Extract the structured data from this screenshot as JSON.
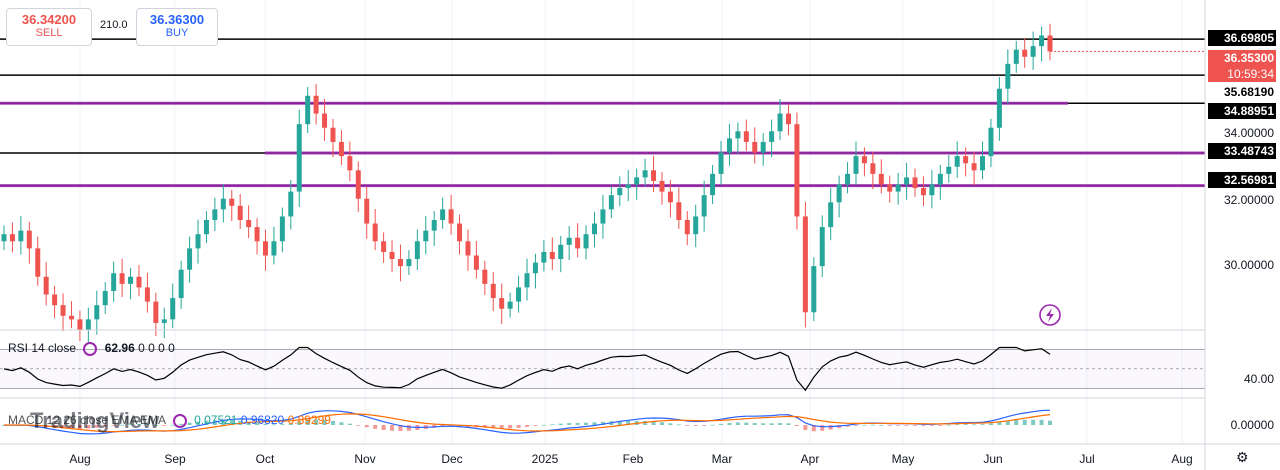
{
  "trade": {
    "sell_price": "36.34200",
    "sell_label": "SELL",
    "spread": "210.0",
    "buy_price": "36.36300",
    "buy_label": "BUY"
  },
  "colors": {
    "up": "#26a69a",
    "down": "#ef5350",
    "purple_line": "#9c27b0",
    "black_line": "#000000",
    "rsi": "#000000",
    "macd": "#2962ff",
    "signal": "#ff6d00",
    "current_price_bg": "#ef5350"
  },
  "rsi": {
    "label": "RSI 14 close",
    "value": "62.96",
    "extra": "0 0 0 0"
  },
  "macd": {
    "label": "MACD 12 26 close EMA EMA",
    "v1": "0.07521",
    "v2": "0.96820",
    "v3": "0.89299"
  },
  "watermark": "TradingView",
  "chart_data": {
    "type": "candlestick",
    "price_axis_ticks": [
      "34.00000",
      "32.00000",
      "30.00000"
    ],
    "rsi_axis_ticks": [
      "40.00"
    ],
    "macd_axis_ticks": [
      "0.00000"
    ],
    "time_axis_labels": [
      "Aug",
      "Sep",
      "Oct",
      "Nov",
      "Dec",
      "2025",
      "Feb",
      "Mar",
      "Apr",
      "May",
      "Jun",
      "Jul",
      "Aug"
    ],
    "horizontal_levels": [
      {
        "value": 36.69805,
        "label": "36.69805",
        "color": "black"
      },
      {
        "value": 35.6819,
        "label": "35.68190",
        "color": "black"
      },
      {
        "value": 34.88951,
        "label": "34.88951",
        "color": "black"
      },
      {
        "value": 33.48743,
        "label": "33.48743",
        "color": "black"
      },
      {
        "value": 32.56981,
        "label": "32.56981",
        "color": "black"
      }
    ],
    "current_price": {
      "value": 36.353,
      "label": "36.35300",
      "countdown": "10:59:34"
    },
    "ylim": [
      28.5,
      37.8
    ],
    "closes": [
      31.2,
      31.0,
      31.3,
      30.8,
      30.0,
      29.5,
      29.2,
      28.9,
      28.8,
      28.5,
      28.8,
      29.2,
      29.6,
      30.1,
      29.8,
      30.0,
      29.7,
      29.3,
      28.7,
      28.8,
      29.4,
      30.2,
      30.8,
      31.2,
      31.6,
      31.9,
      32.2,
      32.0,
      31.6,
      31.4,
      31.0,
      30.6,
      31.0,
      31.7,
      32.4,
      34.3,
      35.1,
      34.6,
      34.2,
      33.8,
      33.4,
      33.0,
      32.2,
      31.5,
      31.0,
      30.7,
      30.5,
      30.3,
      30.5,
      31.0,
      31.3,
      31.6,
      31.9,
      31.5,
      31.0,
      30.6,
      30.2,
      29.8,
      29.4,
      29.1,
      29.3,
      29.7,
      30.1,
      30.4,
      30.7,
      30.5,
      30.9,
      31.1,
      30.8,
      31.2,
      31.5,
      31.9,
      32.3,
      32.5,
      32.6,
      32.8,
      33.0,
      32.7,
      32.4,
      32.1,
      31.6,
      31.2,
      31.7,
      32.3,
      32.9,
      33.5,
      33.9,
      34.1,
      33.8,
      33.5,
      33.8,
      34.1,
      34.6,
      34.3,
      31.7,
      29.0,
      30.3,
      31.4,
      32.1,
      32.6,
      32.9,
      33.4,
      33.2,
      32.9,
      32.6,
      32.4,
      32.6,
      32.8,
      32.5,
      32.3,
      32.6,
      32.9,
      33.1,
      33.4,
      33.2,
      33.0,
      33.4,
      34.2,
      35.3,
      36.0,
      36.4,
      36.2,
      36.5,
      36.8,
      36.35
    ]
  }
}
